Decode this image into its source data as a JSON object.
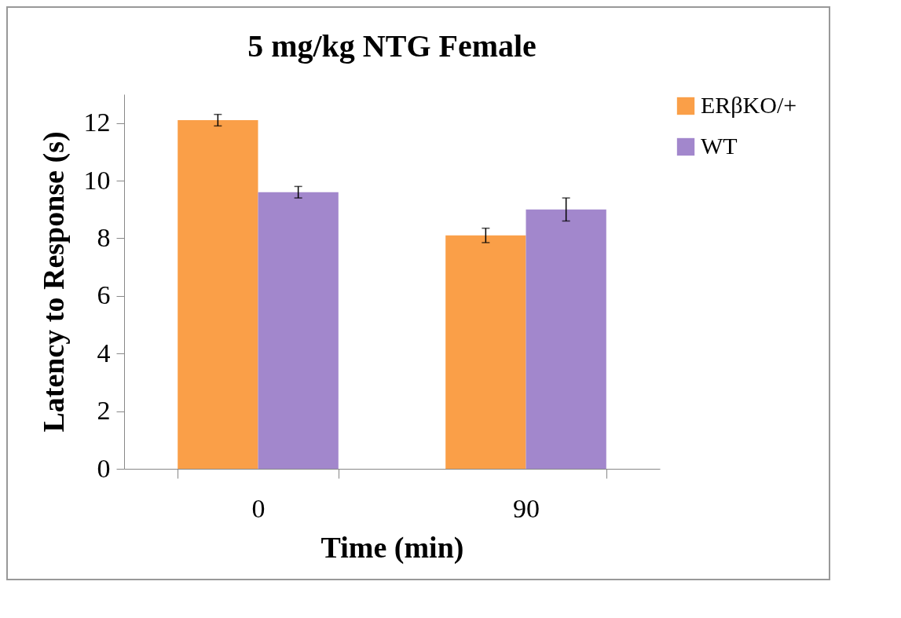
{
  "chart_data": {
    "type": "bar",
    "title": "5 mg/kg NTG Female",
    "xlabel": "Time (min)",
    "ylabel": "Latency to Response (s)",
    "categories": [
      "0",
      "90"
    ],
    "series": [
      {
        "name": "ERβKO/+",
        "color": "#fa9f48",
        "values": [
          12.1,
          8.1
        ],
        "errors": [
          0.2,
          0.25
        ]
      },
      {
        "name": "WT",
        "color": "#a287cc",
        "values": [
          9.6,
          9.0
        ],
        "errors": [
          0.2,
          0.4
        ]
      }
    ],
    "ylim": [
      0,
      13
    ],
    "yticks": [
      0,
      2,
      4,
      6,
      8,
      10,
      12
    ],
    "grid": false,
    "legend": "right"
  }
}
